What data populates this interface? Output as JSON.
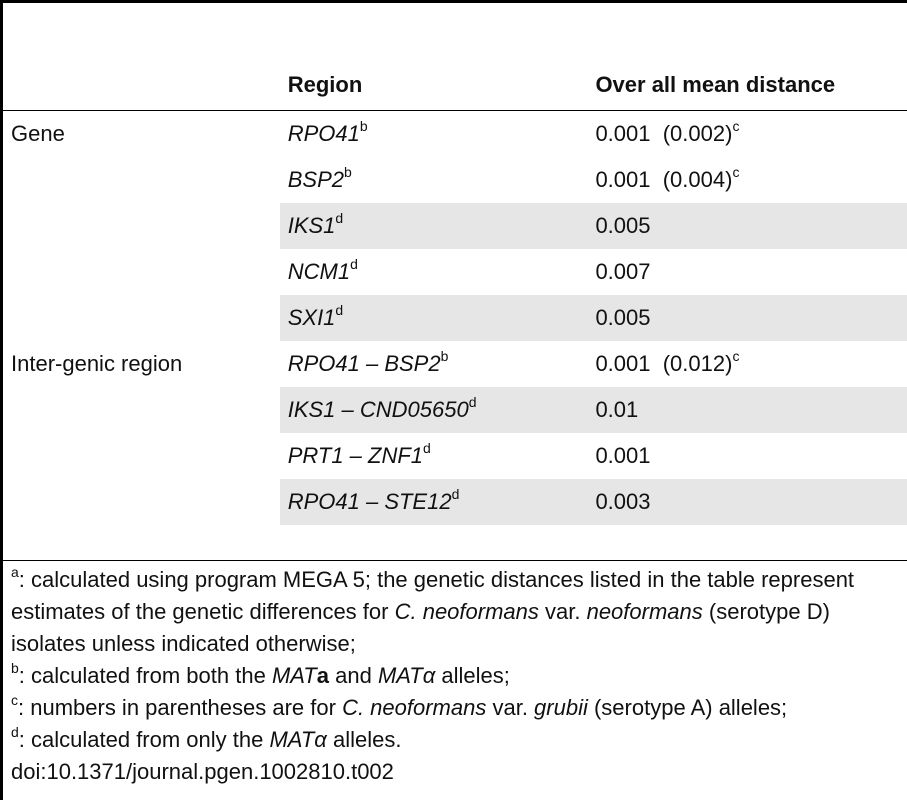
{
  "table": {
    "headers": {
      "category": "",
      "region": "Region",
      "distance": "Over all mean distance"
    },
    "rows": [
      {
        "category": "Gene",
        "region": "RPO41",
        "region_sup": "b",
        "distance": "0.001",
        "distance_extra": "(0.002)",
        "distance_sup": "c",
        "shaded": false
      },
      {
        "category": "",
        "region": "BSP2",
        "region_sup": "b",
        "distance": "0.001",
        "distance_extra": "(0.004)",
        "distance_sup": "c",
        "shaded": false
      },
      {
        "category": "",
        "region": "IKS1",
        "region_sup": "d",
        "distance": "0.005",
        "distance_extra": "",
        "distance_sup": "",
        "shaded": true
      },
      {
        "category": "",
        "region": "NCM1",
        "region_sup": "d",
        "distance": "0.007",
        "distance_extra": "",
        "distance_sup": "",
        "shaded": false
      },
      {
        "category": "",
        "region": "SXI1",
        "region_sup": "d",
        "distance": "0.005",
        "distance_extra": "",
        "distance_sup": "",
        "shaded": true
      },
      {
        "category": "Inter-genic region",
        "region": "RPO41 – BSP2",
        "region_sup": "b",
        "distance": "0.001",
        "distance_extra": "(0.012)",
        "distance_sup": "c",
        "shaded": false
      },
      {
        "category": "",
        "region": "IKS1 – CND05650",
        "region_sup": "d",
        "distance": "0.01",
        "distance_extra": "",
        "distance_sup": "",
        "shaded": true
      },
      {
        "category": "",
        "region": "PRT1 – ZNF1",
        "region_sup": "d",
        "distance": "0.001",
        "distance_extra": "",
        "distance_sup": "",
        "shaded": false
      },
      {
        "category": "",
        "region": "RPO41 – STE12",
        "region_sup": "d",
        "distance": "0.003",
        "distance_extra": "",
        "distance_sup": "",
        "shaded": true
      }
    ]
  },
  "footnotes": {
    "a": {
      "mark": "a",
      "text1": ": calculated using program MEGA 5; the genetic distances listed in the table represent estimates of the genetic differences for ",
      "species": "C. neoformans",
      "text2": " var. ",
      "variety": "neoformans",
      "text3": " (serotype D) isolates unless indicated otherwise;"
    },
    "b": {
      "mark": "b",
      "text1": ": calculated from both the ",
      "allele1_it": "MAT",
      "allele1_b": "a",
      "text2": " and ",
      "allele2_it": "MAT",
      "allele2_greek": "α",
      "text3": " alleles;"
    },
    "c": {
      "mark": "c",
      "text1": ": numbers in parentheses are for ",
      "species": "C. neoformans",
      "text2": " var. ",
      "variety": "grubii",
      "text3": " (serotype A) alleles;"
    },
    "d": {
      "mark": "d",
      "text1": ": calculated from only the ",
      "allele_it": "MAT",
      "allele_greek": "α",
      "text2": " alleles."
    }
  },
  "doi": "doi:10.1371/journal.pgen.1002810.t002"
}
